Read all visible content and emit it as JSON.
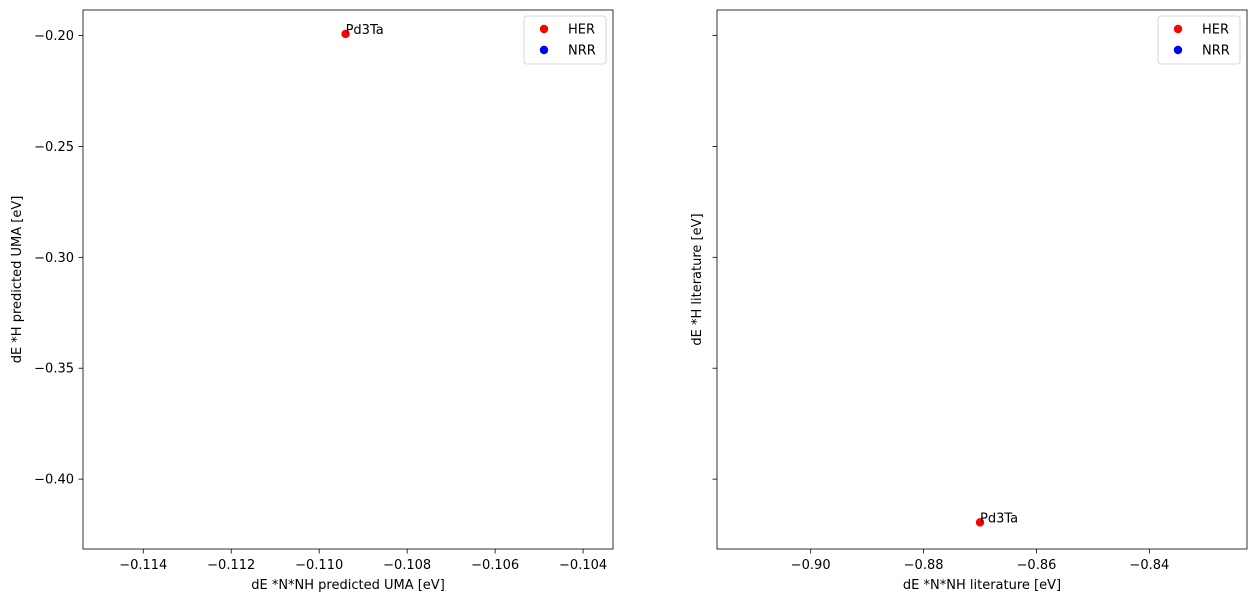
{
  "chart_data": [
    {
      "type": "scatter",
      "xlabel": "dE *N*NH predicted UMA [eV]",
      "ylabel": "dE *H predicted UMA [eV]",
      "xlim": [
        -0.11537,
        -0.10332
      ],
      "ylim": [
        -0.4315,
        -0.1885
      ],
      "xticks": [
        -0.114,
        -0.112,
        -0.11,
        -0.108,
        -0.106,
        -0.104
      ],
      "xtick_labels": [
        "−0.114",
        "−0.112",
        "−0.110",
        "−0.108",
        "−0.106",
        "−0.104"
      ],
      "yticks": [
        -0.2,
        -0.25,
        -0.3,
        -0.35,
        -0.4
      ],
      "ytick_labels": [
        "−0.20",
        "−0.25",
        "−0.30",
        "−0.35",
        "−0.40"
      ],
      "show_ytick_labels": true,
      "grid": false,
      "legend_position": "top-right",
      "series": [
        {
          "name": "HER",
          "color": "#ff0000",
          "points": [
            {
              "x": -0.1094,
              "y": -0.1993,
              "label": "Pd3Ta"
            }
          ]
        },
        {
          "name": "NRR",
          "color": "#0000ff",
          "points": []
        }
      ]
    },
    {
      "type": "scatter",
      "xlabel": "dE *N*NH literature [eV]",
      "ylabel": "dE *H literature [eV]",
      "xlim": [
        -0.9166,
        -0.8227
      ],
      "ylim": [
        -0.4315,
        -0.1885
      ],
      "xticks": [
        -0.9,
        -0.88,
        -0.86,
        -0.84
      ],
      "xtick_labels": [
        "−0.90",
        "−0.88",
        "−0.86",
        "−0.84"
      ],
      "yticks": [
        -0.2,
        -0.25,
        -0.3,
        -0.35,
        -0.4
      ],
      "ytick_labels": [],
      "show_ytick_labels": false,
      "grid": false,
      "legend_position": "top-right",
      "series": [
        {
          "name": "HER",
          "color": "#ff0000",
          "points": [
            {
              "x": -0.87,
              "y": -0.4195,
              "label": "Pd3Ta"
            }
          ]
        },
        {
          "name": "NRR",
          "color": "#0000ff",
          "points": []
        }
      ]
    }
  ]
}
